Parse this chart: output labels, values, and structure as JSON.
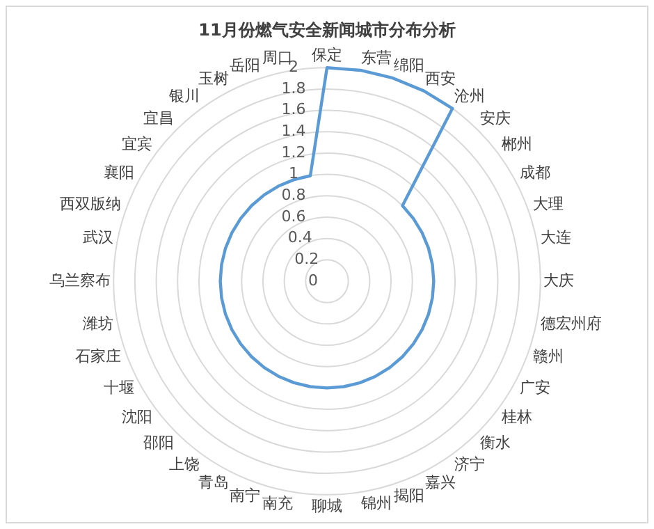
{
  "chart_data": {
    "type": "radar",
    "title": "11月份燃气安全新闻城市分布分析",
    "categories": [
      "保定",
      "东营",
      "绵阳",
      "西安",
      "沧州",
      "安庆",
      "郴州",
      "成都",
      "大理",
      "大连",
      "大庆",
      "德宏州府",
      "赣州",
      "广安",
      "桂林",
      "衡水",
      "济宁",
      "嘉兴",
      "揭阳",
      "锦州",
      "聊城",
      "南充",
      "南宁",
      "青岛",
      "上饶",
      "邵阳",
      "沈阳",
      "十堰",
      "石家庄",
      "潍坊",
      "乌兰察布",
      "武汉",
      "西双版纳",
      "襄阳",
      "宜宾",
      "宜昌",
      "银川",
      "玉树",
      "岳阳",
      "周口"
    ],
    "series": [
      {
        "color": "#5b9bd5",
        "values": [
          2,
          2,
          2,
          2,
          2,
          1,
          1,
          1,
          1,
          1,
          1,
          1,
          1,
          1,
          1,
          1,
          1,
          1,
          1,
          1,
          1,
          1,
          1,
          1,
          1,
          1,
          1,
          1,
          1,
          1,
          1,
          1,
          1,
          1,
          1,
          1,
          1,
          1,
          1,
          1
        ]
      }
    ],
    "ylim": [
      0,
      2
    ],
    "yticks": [
      0,
      0.2,
      0.4,
      0.6,
      0.8,
      1,
      1.2,
      1.4,
      1.6,
      1.8,
      2
    ],
    "grid": true,
    "legend": false,
    "marker": "none"
  }
}
